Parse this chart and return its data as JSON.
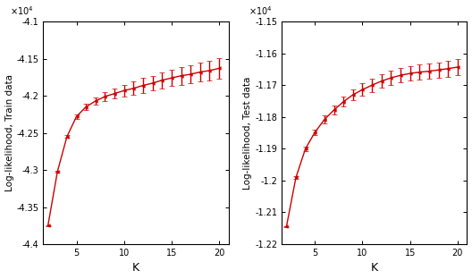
{
  "K_values": [
    2,
    3,
    4,
    5,
    6,
    7,
    8,
    9,
    10,
    11,
    12,
    13,
    14,
    15,
    16,
    17,
    18,
    19,
    20
  ],
  "train_mean": [
    -4.375,
    -4.302,
    -4.255,
    -4.228,
    -4.215,
    -4.207,
    -4.201,
    -4.197,
    -4.193,
    -4.19,
    -4.186,
    -4.183,
    -4.179,
    -4.176,
    -4.173,
    -4.171,
    -4.168,
    -4.166,
    -4.163
  ],
  "train_err": [
    0.0005,
    0.001,
    0.002,
    0.003,
    0.004,
    0.005,
    0.006,
    0.007,
    0.008,
    0.009,
    0.01,
    0.01,
    0.011,
    0.011,
    0.012,
    0.012,
    0.013,
    0.013,
    0.014
  ],
  "test_mean": [
    -1.2145,
    -1.199,
    -1.19,
    -1.1848,
    -1.1808,
    -1.1778,
    -1.1752,
    -1.173,
    -1.1714,
    -1.17,
    -1.1687,
    -1.1677,
    -1.1669,
    -1.1663,
    -1.1659,
    -1.1656,
    -1.1652,
    -1.1648,
    -1.1643
  ],
  "test_err": [
    0.0002,
    0.0004,
    0.0006,
    0.0009,
    0.0012,
    0.0014,
    0.0016,
    0.0018,
    0.002,
    0.0021,
    0.0022,
    0.0022,
    0.0023,
    0.0023,
    0.0024,
    0.0024,
    0.0024,
    0.0025,
    0.0025
  ],
  "train_ylim": [
    -4.4,
    -4.1
  ],
  "train_yticks": [
    -4.4,
    -4.35,
    -4.3,
    -4.25,
    -4.2,
    -4.15,
    -4.1
  ],
  "train_ytick_labels": [
    "-4.4",
    "-4.35",
    "-4.3",
    "-4.25",
    "-4.2",
    "-4.15",
    "-4.1"
  ],
  "test_ylim": [
    -1.22,
    -1.15
  ],
  "test_yticks": [
    -1.22,
    -1.21,
    -1.2,
    -1.19,
    -1.18,
    -1.17,
    -1.16,
    -1.15
  ],
  "test_ytick_labels": [
    "-1.22",
    "-1.21",
    "-1.2",
    "-1.19",
    "-1.18",
    "-1.17",
    "-1.16",
    "-1.15"
  ],
  "xlim": [
    1.5,
    21
  ],
  "xticks": [
    5,
    10,
    15,
    20
  ],
  "color": "#cc0000",
  "train_ylabel": "Log-likelihood, Train data",
  "test_ylabel": "Log-likelihood, Test data",
  "xlabel": "K",
  "train_scale": 10000.0,
  "test_scale": 10000.0
}
